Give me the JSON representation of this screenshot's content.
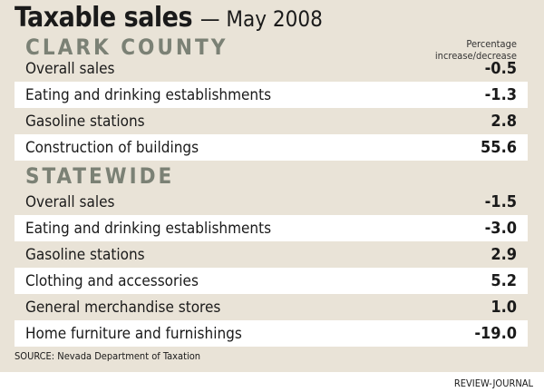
{
  "title": "Taxable sales",
  "subtitle": "— May 2008",
  "column_header": [
    "Percentage",
    "increase/decrease"
  ],
  "chart_data": {
    "type": "table",
    "title": "Taxable sales — May 2008",
    "sections": [
      {
        "name": "CLARK COUNTY",
        "rows": [
          {
            "label": "Overall sales",
            "value": "-0.5"
          },
          {
            "label": "Eating and drinking establishments",
            "value": "-1.3"
          },
          {
            "label": "Gasoline stations",
            "value": "2.8"
          },
          {
            "label": "Construction of buildings",
            "value": "55.6"
          }
        ]
      },
      {
        "name": "STATEWIDE",
        "rows": [
          {
            "label": "Overall sales",
            "value": "-1.5"
          },
          {
            "label": "Eating and drinking establishments",
            "value": "-3.0"
          },
          {
            "label": "Gasoline stations",
            "value": "2.9"
          },
          {
            "label": "Clothing and accessories",
            "value": "5.2"
          },
          {
            "label": "General merchandise stores",
            "value": "1.0"
          },
          {
            "label": "Home furniture and furnishings",
            "value": "-19.0"
          }
        ]
      }
    ]
  },
  "source": "SOURCE: Nevada Department of Taxation",
  "credit": "REVIEW-JOURNAL"
}
